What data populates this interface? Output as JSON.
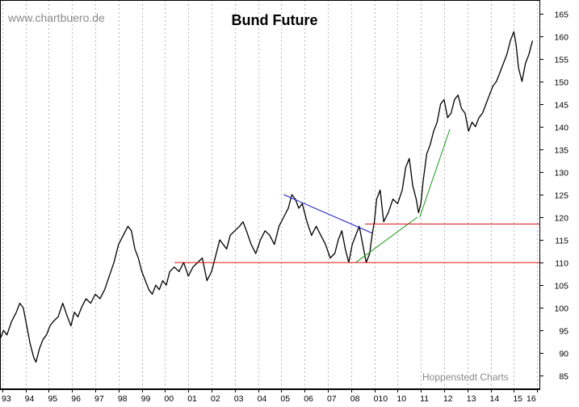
{
  "chart_data": {
    "type": "line",
    "title": "Bund Future",
    "watermark": "www.chartbuero.de",
    "source": "Hoppenstedt Charts",
    "xlabel": "",
    "ylabel": "",
    "xlim": [
      1993.0,
      2016.2
    ],
    "ylim": [
      82,
      168
    ],
    "y_ticks": [
      85,
      90,
      95,
      100,
      105,
      110,
      115,
      120,
      125,
      130,
      135,
      140,
      145,
      150,
      155,
      160,
      165
    ],
    "x_ticks": [
      {
        "label": "93",
        "x": 1993.1
      },
      {
        "label": "94",
        "x": 1994.1
      },
      {
        "label": "95",
        "x": 1995.1
      },
      {
        "label": "96",
        "x": 1996.1
      },
      {
        "label": "97",
        "x": 1997.1
      },
      {
        "label": "98",
        "x": 1998.1
      },
      {
        "label": "99",
        "x": 1999.1
      },
      {
        "label": "00",
        "x": 2000.1
      },
      {
        "label": "01",
        "x": 2001.1
      },
      {
        "label": "02",
        "x": 2002.1
      },
      {
        "label": "03",
        "x": 2003.1
      },
      {
        "label": "04",
        "x": 2004.1
      },
      {
        "label": "05",
        "x": 2005.1
      },
      {
        "label": "06",
        "x": 2006.1
      },
      {
        "label": "07",
        "x": 2007.1
      },
      {
        "label": "08",
        "x": 2008.1
      },
      {
        "label": "010",
        "x": 2009.1
      },
      {
        "label": "10",
        "x": 2010.1
      },
      {
        "label": "11",
        "x": 2011.1
      },
      {
        "label": "12",
        "x": 2012.1
      },
      {
        "label": "13",
        "x": 2013.1
      },
      {
        "label": "14",
        "x": 2014.1
      },
      {
        "label": "15",
        "x": 2015.1
      },
      {
        "label": "16",
        "x": 2016.1
      }
    ],
    "grid": {
      "vertical": true,
      "horizontal": false,
      "style": "dotted"
    },
    "colors": {
      "price": "#000000",
      "down_trend": "#1a1acc",
      "up_trend": "#1a9a1a",
      "support": "#dd1111",
      "grid": "#b8b8b8"
    },
    "series": [
      {
        "x": [
          1993.0,
          1993.15,
          1993.3,
          1993.5,
          1993.7,
          1993.85,
          1994.0,
          1994.15,
          1994.3,
          1994.45,
          1994.55,
          1994.7,
          1994.85,
          1995.0,
          1995.15,
          1995.3,
          1995.5,
          1995.7,
          1995.9,
          1996.05,
          1996.2,
          1996.35,
          1996.5,
          1996.7,
          1996.9,
          1997.1,
          1997.3,
          1997.5,
          1997.7,
          1997.9,
          1998.1,
          1998.3,
          1998.5,
          1998.65,
          1998.8,
          1998.95,
          1999.1,
          1999.25,
          1999.4,
          1999.55,
          1999.7,
          1999.85,
          2000.0,
          2000.15,
          2000.3,
          2000.5,
          2000.7,
          2000.9,
          2001.1,
          2001.3,
          2001.5,
          2001.7,
          2001.9,
          2002.1,
          2002.3,
          2002.45,
          2002.6,
          2002.75,
          2002.9,
          2003.1,
          2003.3,
          2003.45,
          2003.6,
          2003.8,
          2004.0,
          2004.2,
          2004.4,
          2004.6,
          2004.8,
          2005.0,
          2005.2,
          2005.4,
          2005.55,
          2005.7,
          2005.85,
          2006.0,
          2006.2,
          2006.4,
          2006.6,
          2006.8,
          2007.0,
          2007.2,
          2007.4,
          2007.55,
          2007.7,
          2007.85,
          2008.0,
          2008.15,
          2008.3,
          2008.45,
          2008.6,
          2008.75,
          2008.9,
          2009.0,
          2009.1,
          2009.2,
          2009.35,
          2009.5,
          2009.7,
          2009.9,
          2010.1,
          2010.3,
          2010.45,
          2010.6,
          2010.75,
          2010.9,
          2011.0,
          2011.1,
          2011.2,
          2011.35,
          2011.5,
          2011.65,
          2011.8,
          2011.95,
          2012.1,
          2012.25,
          2012.4,
          2012.55,
          2012.7,
          2012.85,
          2013.0,
          2013.15,
          2013.3,
          2013.45,
          2013.6,
          2013.75,
          2013.9,
          2014.05,
          2014.2,
          2014.35,
          2014.5,
          2014.65,
          2014.8,
          2014.95,
          2015.1,
          2015.2,
          2015.3,
          2015.45,
          2015.6,
          2015.75,
          2015.9
        ],
        "y": [
          93,
          95,
          94,
          97,
          99,
          101,
          100,
          96,
          92,
          89,
          88,
          91,
          93,
          94,
          96,
          97,
          98,
          101,
          98,
          96,
          99,
          98,
          100,
          102,
          101,
          103,
          102,
          104,
          107,
          110,
          114,
          116,
          118,
          117,
          113,
          111,
          108,
          106,
          104,
          103,
          105,
          104,
          106,
          105,
          108,
          109,
          108,
          110,
          107,
          109,
          110,
          111,
          106,
          108,
          112,
          115,
          114,
          113,
          116,
          117,
          118,
          119,
          117,
          114,
          112,
          115,
          117,
          116,
          114,
          118,
          120,
          122,
          125,
          124,
          122,
          123,
          119,
          116,
          118,
          116,
          114,
          111,
          112,
          115,
          117,
          113,
          110,
          114,
          116,
          118,
          114,
          110,
          112,
          116,
          119,
          124,
          126,
          119,
          121,
          124,
          123,
          126,
          131,
          133,
          127,
          124,
          121,
          123,
          128,
          134,
          136,
          139,
          141,
          145,
          146,
          142,
          143,
          146,
          147,
          144,
          143,
          139,
          141,
          140,
          142,
          143,
          145,
          147,
          149,
          150,
          152,
          154,
          156,
          159,
          161,
          158,
          153,
          150,
          154,
          156,
          159
        ]
      }
    ],
    "lines": [
      {
        "name": "",
        "type": "downtrend",
        "x": [
          2005.2,
          2009.0
        ],
        "y": [
          125,
          116.5
        ]
      },
      {
        "name": "",
        "type": "uptrend",
        "x": [
          2008.3,
          2010.95
        ],
        "y": [
          110,
          120
        ]
      },
      {
        "name": "",
        "type": "uptrend",
        "x": [
          2011.05,
          2012.35
        ],
        "y": [
          120,
          139.5
        ]
      },
      {
        "name": "",
        "type": "support",
        "x": [
          2000.5,
          2016.2
        ],
        "y": [
          110,
          110
        ]
      },
      {
        "name": "",
        "type": "resistance",
        "x": [
          2008.7,
          2016.2
        ],
        "y": [
          118.5,
          118.5
        ]
      }
    ]
  }
}
